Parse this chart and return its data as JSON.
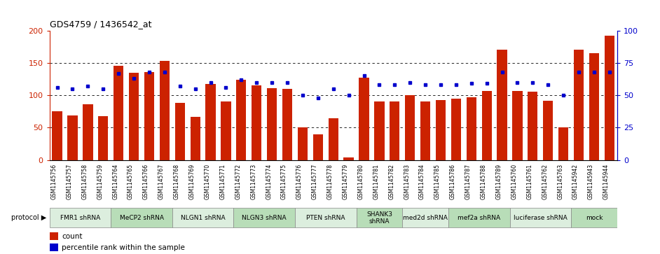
{
  "title": "GDS4759 / 1436542_at",
  "samples": [
    "GSM1145756",
    "GSM1145757",
    "GSM1145758",
    "GSM1145759",
    "GSM1145764",
    "GSM1145765",
    "GSM1145766",
    "GSM1145767",
    "GSM1145768",
    "GSM1145769",
    "GSM1145770",
    "GSM1145771",
    "GSM1145772",
    "GSM1145773",
    "GSM1145774",
    "GSM1145775",
    "GSM1145776",
    "GSM1145777",
    "GSM1145778",
    "GSM1145779",
    "GSM1145780",
    "GSM1145781",
    "GSM1145782",
    "GSM1145783",
    "GSM1145784",
    "GSM1145785",
    "GSM1145786",
    "GSM1145787",
    "GSM1145788",
    "GSM1145789",
    "GSM1145760",
    "GSM1145761",
    "GSM1145762",
    "GSM1145763",
    "GSM1145942",
    "GSM1145943",
    "GSM1145944"
  ],
  "bar_values": [
    75,
    69,
    86,
    68,
    146,
    135,
    136,
    153,
    88,
    67,
    117,
    90,
    124,
    115,
    111,
    110,
    50,
    40,
    65,
    4,
    127,
    90,
    90,
    100,
    90,
    93,
    95,
    97,
    107,
    170,
    107,
    105,
    92,
    50,
    170,
    165,
    192
  ],
  "dot_values": [
    56,
    55,
    57,
    55,
    67,
    63,
    68,
    68,
    57,
    55,
    60,
    56,
    62,
    60,
    60,
    60,
    50,
    48,
    55,
    50,
    65,
    58,
    58,
    60,
    58,
    58,
    58,
    59,
    59,
    68,
    60,
    60,
    58,
    50,
    68,
    68,
    68
  ],
  "groups": [
    {
      "label": "FMR1 shRNA",
      "start": 0,
      "end": 4,
      "color": "#dceede"
    },
    {
      "label": "MeCP2 shRNA",
      "start": 4,
      "end": 8,
      "color": "#b8ddb8"
    },
    {
      "label": "NLGN1 shRNA",
      "start": 8,
      "end": 12,
      "color": "#dceede"
    },
    {
      "label": "NLGN3 shRNA",
      "start": 12,
      "end": 16,
      "color": "#b8ddb8"
    },
    {
      "label": "PTEN shRNA",
      "start": 16,
      "end": 20,
      "color": "#dceede"
    },
    {
      "label": "SHANK3\nshRNA",
      "start": 20,
      "end": 23,
      "color": "#b8ddb8"
    },
    {
      "label": "med2d shRNA",
      "start": 23,
      "end": 26,
      "color": "#dceede"
    },
    {
      "label": "mef2a shRNA",
      "start": 26,
      "end": 30,
      "color": "#b8ddb8"
    },
    {
      "label": "luciferase shRNA",
      "start": 30,
      "end": 34,
      "color": "#dceede"
    },
    {
      "label": "mock",
      "start": 34,
      "end": 37,
      "color": "#b8ddb8"
    }
  ],
  "bar_color": "#cc2200",
  "dot_color": "#0000cc",
  "ylim_left": [
    0,
    200
  ],
  "ylim_right": [
    0,
    100
  ],
  "yticks_left": [
    0,
    50,
    100,
    150,
    200
  ],
  "yticks_right": [
    0,
    25,
    50,
    75,
    100
  ],
  "grid_values": [
    50,
    100,
    150
  ],
  "plot_bg_color": "#ffffff",
  "tick_area_bg": "#d8d8d8",
  "legend_count_label": "count",
  "legend_pct_label": "percentile rank within the sample",
  "protocol_label": "protocol"
}
